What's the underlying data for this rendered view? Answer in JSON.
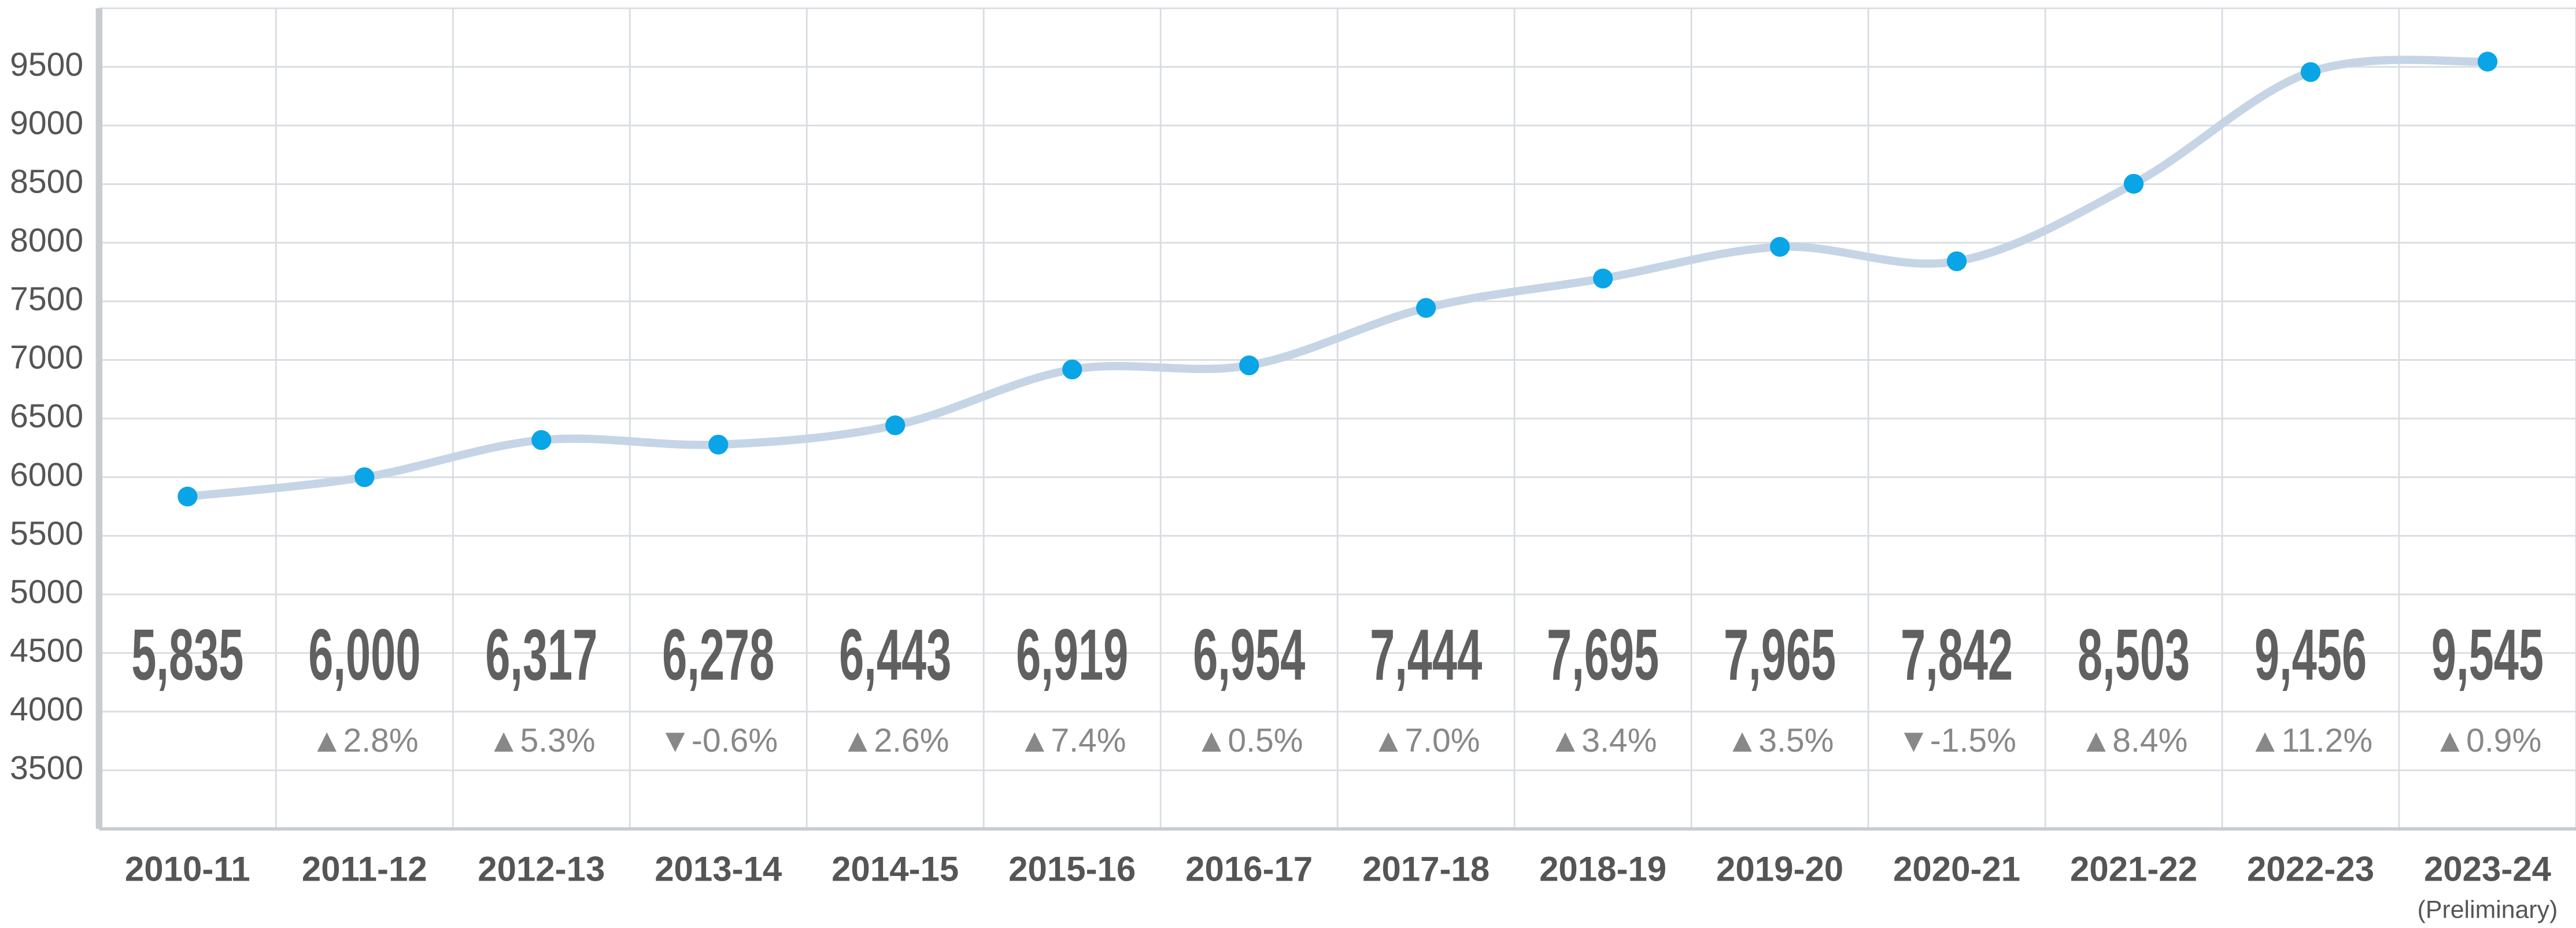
{
  "chart_data": {
    "type": "line",
    "categories": [
      "2010-11",
      "2011-12",
      "2012-13",
      "2013-14",
      "2014-15",
      "2015-16",
      "2016-17",
      "2017-18",
      "2018-19",
      "2019-20",
      "2020-21",
      "2021-22",
      "2022-23",
      "2023-24"
    ],
    "category_note": "(Preliminary)",
    "values": [
      5835,
      6000,
      6317,
      6278,
      6443,
      6919,
      6954,
      7444,
      7695,
      7965,
      7842,
      8503,
      9456,
      9545
    ],
    "value_labels": [
      "5,835",
      "6,000",
      "6,317",
      "6,278",
      "6,443",
      "6,919",
      "6,954",
      "7,444",
      "7,695",
      "7,965",
      "7,842",
      "8,503",
      "9,456",
      "9,545"
    ],
    "changes": [
      null,
      "▲2.8%",
      "▲5.3%",
      "▼-0.6%",
      "▲2.6%",
      "▲7.4%",
      "▲0.5%",
      "▲7.0%",
      "▲3.4%",
      "▲3.5%",
      "▼-1.5%",
      "▲8.4%",
      "▲11.2%",
      "▲0.9%"
    ],
    "line_color": "#c6d5e5",
    "point_color": "#0aa5e6",
    "ylim": [
      3000,
      10000
    ],
    "yticks": [
      3500,
      4000,
      4500,
      5000,
      5500,
      6000,
      6500,
      7000,
      7500,
      8000,
      8500,
      9000,
      9500
    ],
    "grid": true
  }
}
